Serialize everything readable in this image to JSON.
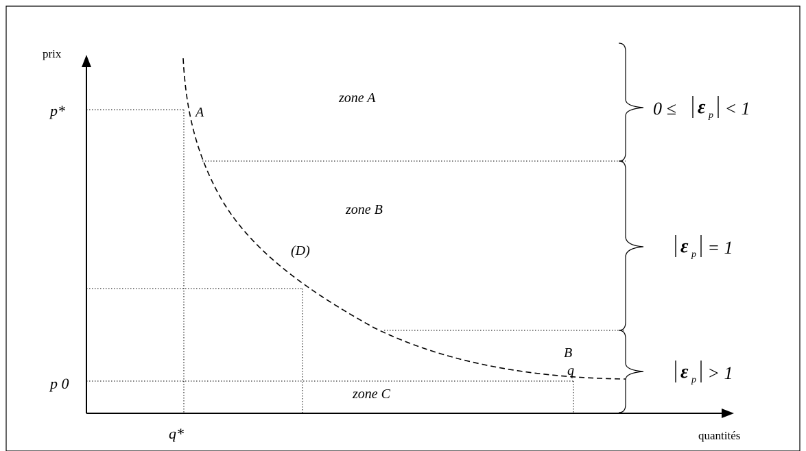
{
  "axes": {
    "y_label": "prix",
    "x_label": "quantités",
    "y_tick_high": "p*",
    "y_tick_low": "p 0",
    "x_tick": "q*"
  },
  "curve": {
    "label": "(D)",
    "point_a": "A",
    "point_b": "B",
    "point_q": "q"
  },
  "zones": {
    "a": "zone A",
    "b": "zone B",
    "c": "zone C"
  },
  "elasticity": {
    "a": {
      "prefix": "0 ≤ ",
      "symbol": "ε",
      "sub": "p",
      "suffix": " < 1"
    },
    "b": {
      "prefix": "",
      "symbol": "ε",
      "sub": "p",
      "suffix": " = 1"
    },
    "c": {
      "prefix": "",
      "symbol": "ε",
      "sub": "p",
      "suffix": " > 1"
    }
  },
  "colors": {
    "line": "#000000",
    "background": "#ffffff"
  }
}
